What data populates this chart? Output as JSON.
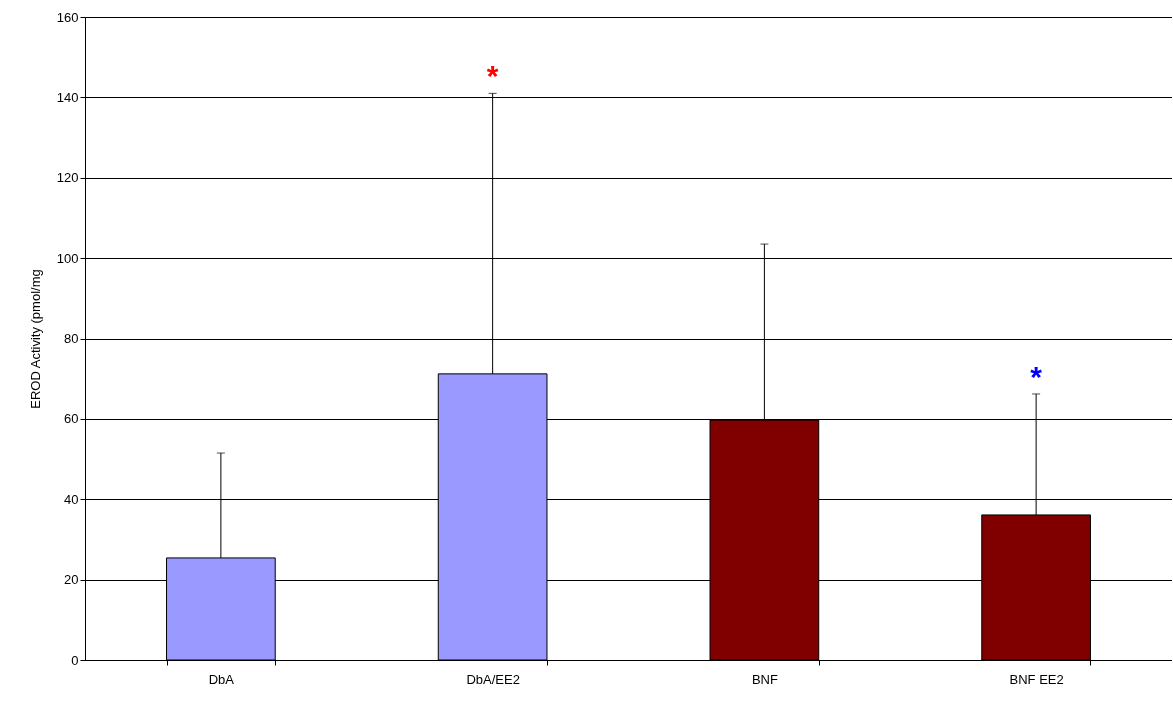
{
  "chart_data": {
    "type": "bar",
    "ylabel": "EROD Activity (pmol/mg",
    "categories": [
      "DbA",
      "DbA/EE2",
      "BNF",
      "BNF EE2"
    ],
    "values": [
      25.4,
      71.2,
      59.7,
      36.1
    ],
    "colors": [
      "#9999ff",
      "#9999ff",
      "#800000",
      "#800000"
    ],
    "errors": [
      [
        25.4,
        51.5
      ],
      [
        71.2,
        141
      ],
      [
        59.7,
        103.5
      ],
      [
        36.1,
        66.2
      ]
    ],
    "ylim": [
      0,
      160
    ],
    "yticks": [
      0,
      20,
      40,
      60,
      80,
      100,
      120,
      140,
      160
    ],
    "grid": "y",
    "annotations": [
      "*",
      "*"
    ]
  }
}
